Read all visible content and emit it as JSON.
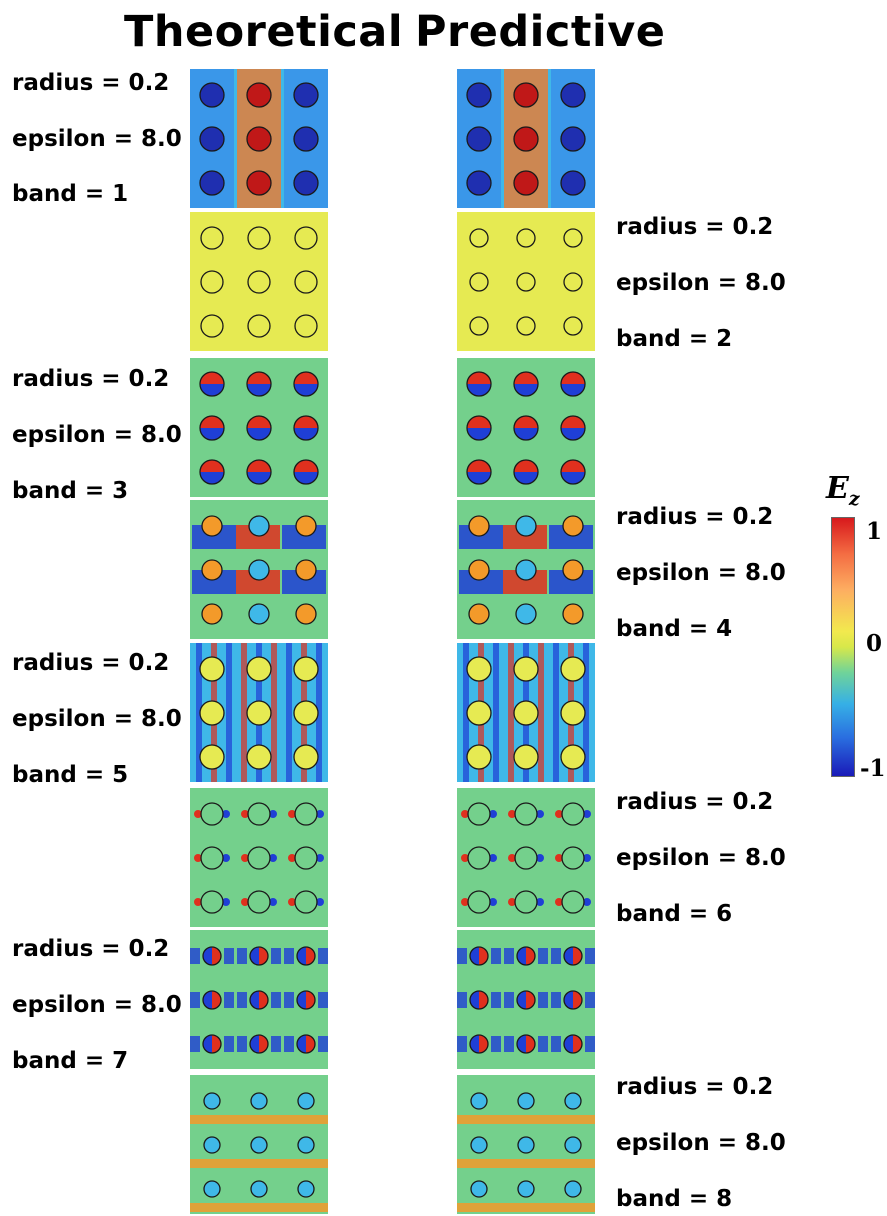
{
  "headings": {
    "theoretical": "Theoretical",
    "predictive": "Predictive"
  },
  "label_lines": [
    "radius = 0.2",
    "epsilon = 8.0",
    "band = 1",
    "band = 2",
    "band = 3",
    "band = 4",
    "band = 5",
    "band = 6",
    "band = 7",
    "band = 8"
  ],
  "bands": [
    {
      "band": 1,
      "label": "band = 1",
      "side": "left"
    },
    {
      "band": 2,
      "label": "band = 2",
      "side": "right"
    },
    {
      "band": 3,
      "label": "band = 3",
      "side": "left"
    },
    {
      "band": 4,
      "label": "band = 4",
      "side": "right"
    },
    {
      "band": 5,
      "label": "band = 5",
      "side": "left"
    },
    {
      "band": 6,
      "label": "band = 6",
      "side": "right"
    },
    {
      "band": 7,
      "label": "band = 7",
      "side": "left"
    },
    {
      "band": 8,
      "label": "band = 8",
      "side": "right"
    }
  ],
  "colorbar": {
    "title": "E",
    "subscript": "z",
    "ticks": [
      "1",
      "0",
      "-1"
    ],
    "colors": [
      "#d7191c",
      "#f46d43",
      "#fdae61",
      "#f2e94e",
      "#6fd39a",
      "#36b0e6",
      "#2a6fe0",
      "#1a1ab8"
    ]
  },
  "field_colors": {
    "positive": "#e0301e",
    "negative": "#1f3fd6",
    "neutral": "#3fb8e8",
    "zero": "#e6ea52",
    "green": "#74d08c",
    "orange": "#f39a2a"
  }
}
